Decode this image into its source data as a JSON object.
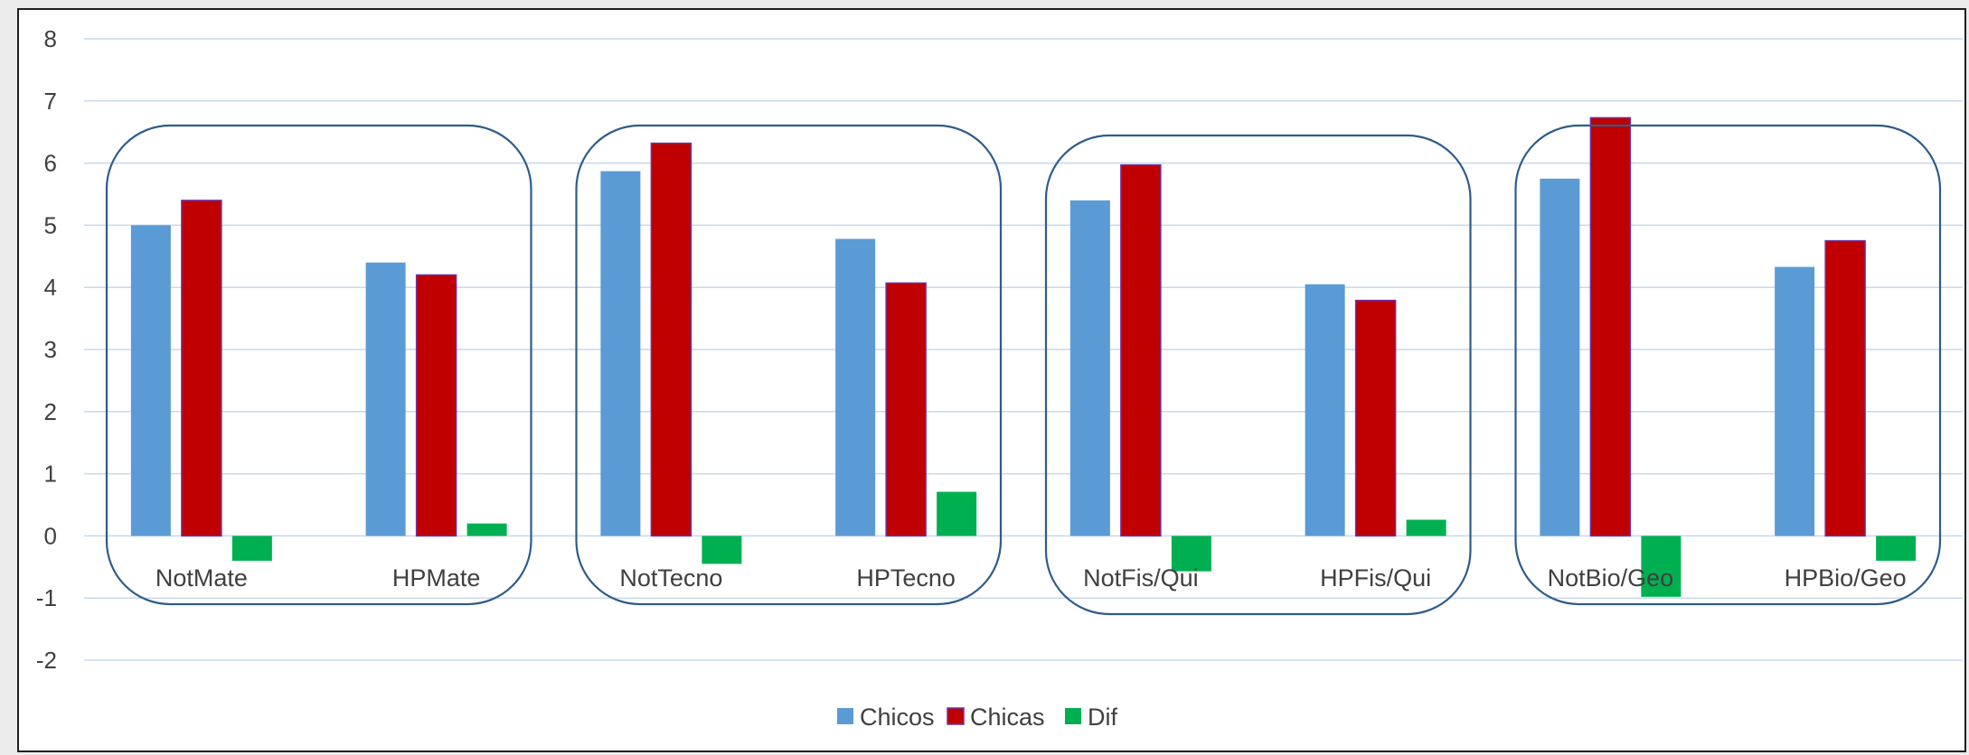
{
  "chart_data": {
    "type": "bar",
    "categories": [
      "NotMate",
      "HPMate",
      "NotTecno",
      "HPTecno",
      "NotFis/Qui",
      "HPFis/Qui",
      "NotBio/Geo",
      "HPBio/Geo"
    ],
    "series": [
      {
        "name": "Chicos",
        "color": "#5b9bd5",
        "values": [
          5.0,
          4.4,
          5.87,
          4.78,
          5.4,
          4.05,
          5.75,
          4.33
        ]
      },
      {
        "name": "Chicas",
        "color": "#c00000",
        "values": [
          5.4,
          4.2,
          6.32,
          4.07,
          5.97,
          3.79,
          6.73,
          4.75
        ]
      },
      {
        "name": "Dif",
        "color": "#00b050",
        "values": [
          -0.4,
          0.2,
          -0.45,
          0.71,
          -0.57,
          0.26,
          -0.98,
          -0.4
        ]
      }
    ],
    "ylim": [
      -2,
      8
    ],
    "yticks": [
      -2,
      -1,
      0,
      1,
      2,
      3,
      4,
      5,
      6,
      7,
      8
    ],
    "grid": true,
    "legend_position": "bottom",
    "group_outlines": [
      "Mate",
      "Tecno",
      "Fis/Qui",
      "Bio/Geo"
    ],
    "title": "",
    "xlabel": "",
    "ylabel": ""
  }
}
